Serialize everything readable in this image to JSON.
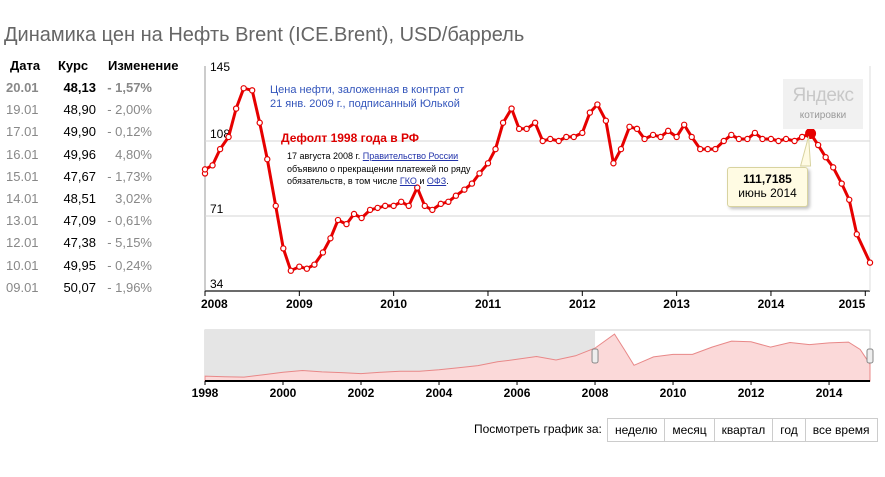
{
  "title": "Динамика цен на Нефть Brent (ICE.Brent), USD/баррель",
  "table": {
    "headers": {
      "date": "Дата",
      "rate": "Курс",
      "change": "Изменение"
    },
    "rows": [
      {
        "date": "20.01",
        "rate": "48,13",
        "change": "- 1,57%"
      },
      {
        "date": "19.01",
        "rate": "48,90",
        "change": "- 2,00%"
      },
      {
        "date": "17.01",
        "rate": "49,90",
        "change": "- 0,12%"
      },
      {
        "date": "16.01",
        "rate": "49,96",
        "change": "4,80%"
      },
      {
        "date": "15.01",
        "rate": "47,67",
        "change": "- 1,73%"
      },
      {
        "date": "14.01",
        "rate": "48,51",
        "change": "3,02%"
      },
      {
        "date": "13.01",
        "rate": "47,09",
        "change": "- 0,61%"
      },
      {
        "date": "12.01",
        "rate": "47,38",
        "change": "- 5,15%"
      },
      {
        "date": "10.01",
        "rate": "49,95",
        "change": "- 0,24%"
      },
      {
        "date": "09.01",
        "rate": "50,07",
        "change": "- 1,96%"
      }
    ]
  },
  "annotations": {
    "blue": "Цена нефти, заложенная в контрат от 21 янв. 2009 г., подписанный Юлькой",
    "red": "Дефолт 1998 года в РФ",
    "note_1": "17 августа 2008 г.",
    "note_link_1": "Правительство России",
    "note_2": "объявило о прекращении платежей по ряду обязательств, в том числе",
    "note_link_2": "ГКО",
    "note_3": "и",
    "note_link_3": "ОФЗ",
    "note_4": "."
  },
  "logo": {
    "name": "Яндекс",
    "sub": "котировки"
  },
  "tooltip": {
    "value": "111,7185",
    "date": "июнь 2014"
  },
  "view_label": "Посмотреть график за:",
  "view_buttons": [
    "неделю",
    "месяц",
    "квартал",
    "год",
    "все время"
  ],
  "colors": {
    "line": "#e60000",
    "marker_fill": "#ffffff",
    "nav_fill": "#fbd9d9",
    "nav_line": "#e88888",
    "shade": "#e5e5e5"
  },
  "chart_data": [
    {
      "type": "line",
      "title": "",
      "x_ticks": [
        "2008",
        "2009",
        "2010",
        "2011",
        "2012",
        "2013",
        "2014",
        "2015"
      ],
      "y_ticks": [
        "145",
        "108",
        "71",
        "34"
      ],
      "ylim": [
        34,
        145
      ],
      "xlim": [
        2008.0,
        2015.05
      ],
      "grid": "horizontal",
      "highlight": {
        "x": 2014.42,
        "y": 111.7185
      },
      "x": [
        2007.9,
        2008.0,
        2008.08,
        2008.16,
        2008.25,
        2008.33,
        2008.41,
        2008.5,
        2008.58,
        2008.66,
        2008.75,
        2008.83,
        2008.91,
        2009.0,
        2009.08,
        2009.16,
        2009.25,
        2009.33,
        2009.41,
        2009.5,
        2009.58,
        2009.66,
        2009.75,
        2009.83,
        2009.91,
        2010.0,
        2010.08,
        2010.16,
        2010.25,
        2010.33,
        2010.41,
        2010.5,
        2010.58,
        2010.66,
        2010.75,
        2010.83,
        2010.91,
        2011.0,
        2011.08,
        2011.16,
        2011.25,
        2011.33,
        2011.41,
        2011.5,
        2011.58,
        2011.66,
        2011.75,
        2011.83,
        2011.91,
        2012.0,
        2012.08,
        2012.16,
        2012.25,
        2012.33,
        2012.41,
        2012.5,
        2012.58,
        2012.66,
        2012.75,
        2012.83,
        2012.91,
        2013.0,
        2013.08,
        2013.16,
        2013.25,
        2013.33,
        2013.41,
        2013.5,
        2013.58,
        2013.66,
        2013.75,
        2013.83,
        2013.91,
        2014.0,
        2014.08,
        2014.16,
        2014.25,
        2014.33,
        2014.42,
        2014.5,
        2014.58,
        2014.66,
        2014.75,
        2014.83,
        2014.91,
        2015.05
      ],
      "y": [
        92,
        94,
        96,
        104,
        110,
        124,
        134,
        133,
        117,
        99,
        76,
        55,
        44,
        46,
        45,
        47,
        53,
        60,
        69,
        67,
        72,
        70,
        74,
        75,
        76,
        76,
        78,
        76,
        85,
        76,
        74,
        77,
        78,
        81,
        84,
        87,
        92,
        97,
        104,
        117,
        124,
        114,
        114,
        117,
        108,
        109,
        108,
        110,
        110,
        112,
        122,
        126,
        118,
        97,
        104,
        115,
        114,
        109,
        111,
        110,
        113,
        110,
        116,
        110,
        104,
        104,
        104,
        108,
        111,
        109,
        109,
        112,
        109,
        109,
        108,
        109,
        108,
        110,
        111.72,
        106,
        100,
        95,
        87,
        79,
        62,
        48
      ]
    },
    {
      "type": "area",
      "title": "",
      "x_ticks": [
        "1998",
        "2000",
        "2002",
        "2004",
        "2006",
        "2008",
        "2010",
        "2012",
        "2014"
      ],
      "selection": [
        2008.0,
        2015.05
      ],
      "x": [
        1998.0,
        1998.5,
        1999.0,
        1999.5,
        2000.0,
        2000.5,
        2001.0,
        2001.5,
        2002.0,
        2002.5,
        2003.0,
        2003.5,
        2004.0,
        2004.5,
        2005.0,
        2005.5,
        2006.0,
        2006.5,
        2007.0,
        2007.5,
        2008.0,
        2008.5,
        2008.75,
        2009.0,
        2009.5,
        2010.0,
        2010.5,
        2011.0,
        2011.5,
        2012.0,
        2012.5,
        2013.0,
        2013.5,
        2014.0,
        2014.5,
        2014.8,
        2015.05
      ],
      "y": [
        14,
        12,
        11,
        18,
        25,
        30,
        26,
        24,
        21,
        25,
        28,
        28,
        32,
        38,
        44,
        55,
        62,
        70,
        60,
        72,
        94,
        134,
        90,
        45,
        69,
        76,
        76,
        97,
        114,
        112,
        97,
        110,
        104,
        109,
        111,
        90,
        48
      ]
    }
  ]
}
